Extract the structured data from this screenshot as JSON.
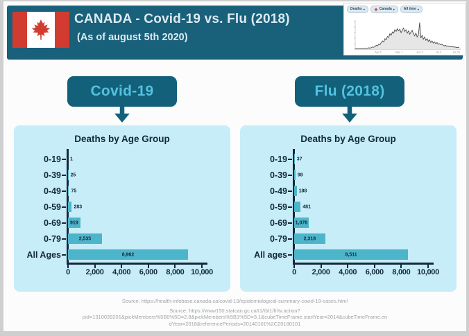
{
  "page": {
    "header": {
      "title": "CANADA - Covid-19 vs. Flu (2018)",
      "subtitle": "(As of august 5th 2020)"
    },
    "thumbnail": {
      "pills": [
        {
          "label": "Deaths",
          "caret": "▾",
          "has_flag": false
        },
        {
          "label": "Canada",
          "caret": "▾",
          "has_flag": true
        },
        {
          "label": "All time",
          "caret": "▾",
          "has_flag": false
        }
      ],
      "x_ticks": [
        "Apr 6",
        "May 1",
        "Jun 5",
        "Jul 3",
        "Jul 30"
      ],
      "sparkline": [
        1,
        1,
        2,
        1,
        2,
        2,
        3,
        2,
        3,
        3,
        4,
        5,
        4,
        6,
        8,
        7,
        10,
        14,
        12,
        18,
        16,
        24,
        30,
        26,
        38,
        34,
        46,
        42,
        56,
        50,
        62,
        58,
        70,
        64,
        74,
        66,
        72,
        60,
        68,
        76,
        64,
        70,
        58,
        66,
        54,
        62,
        68,
        56,
        48,
        58,
        44,
        52,
        96,
        40,
        50,
        36,
        44,
        32,
        38,
        28,
        34,
        24,
        30,
        22,
        26,
        20,
        24,
        18,
        20,
        16,
        18,
        14,
        12,
        14,
        10,
        12,
        9,
        10,
        8,
        9,
        7,
        8,
        6,
        7,
        6
      ]
    },
    "badges": {
      "covid": "Covid-19",
      "flu": "Flu (2018)"
    },
    "sources": [
      "Source: https://health-infobase.canada.ca/covid-19/epidemiological-summary-covid-19-cases.html",
      "Source: https://www150.statcan.gc.ca/t1/tbl1/fr/tv.action?",
      "pid=1310039201&pickMembers%5B0%5D=2.8&pickMembers%5B1%5D=3.1&cubeTimeFrame.startYear=2014&cubeTimeFrame.en",
      "dYear=2018&referencePeriods=20140101%2C20180101"
    ]
  },
  "chart_data": [
    {
      "type": "bar",
      "orientation": "horizontal",
      "subject": "Covid-19",
      "title": "Deaths by Age Group",
      "categories": [
        "0-19",
        "0-39",
        "0-49",
        "0-59",
        "0-69",
        "0-79",
        "All Ages"
      ],
      "values": [
        1,
        25,
        75,
        283,
        919,
        2535,
        8962
      ],
      "value_labels": [
        "1",
        "25",
        "75",
        "283",
        "919",
        "2,535",
        "8,962"
      ],
      "xlim": [
        0,
        10000
      ],
      "x_tick_labels": [
        "0",
        "2,000",
        "4,000",
        "6,000",
        "8,000",
        "10,000"
      ],
      "grid": false,
      "legend": false
    },
    {
      "type": "bar",
      "orientation": "horizontal",
      "subject": "Flu (2018)",
      "title": "Deaths by Age Group",
      "categories": [
        "0-19",
        "0-39",
        "0-49",
        "0-59",
        "0-69",
        "0-79",
        "All ages"
      ],
      "values": [
        37,
        98,
        188,
        481,
        1078,
        2318,
        8511
      ],
      "value_labels": [
        "37",
        "98",
        "188",
        "481",
        "1,078",
        "2,318",
        "8,511"
      ],
      "xlim": [
        0,
        10000
      ],
      "x_tick_labels": [
        "0",
        "2,000",
        "4,000",
        "6,000",
        "8,000",
        "10,000"
      ],
      "grid": false,
      "legend": false
    }
  ],
  "colors": {
    "header_teal": "#19607a",
    "badge_teal": "#12607a",
    "badge_text": "#54c2df",
    "panel_bg": "#c7edf8",
    "bar_teal": "#4db5c9",
    "dark_text": "#13273d",
    "flag_red": "#d23c30",
    "source_gray": "#9fa3a7"
  }
}
